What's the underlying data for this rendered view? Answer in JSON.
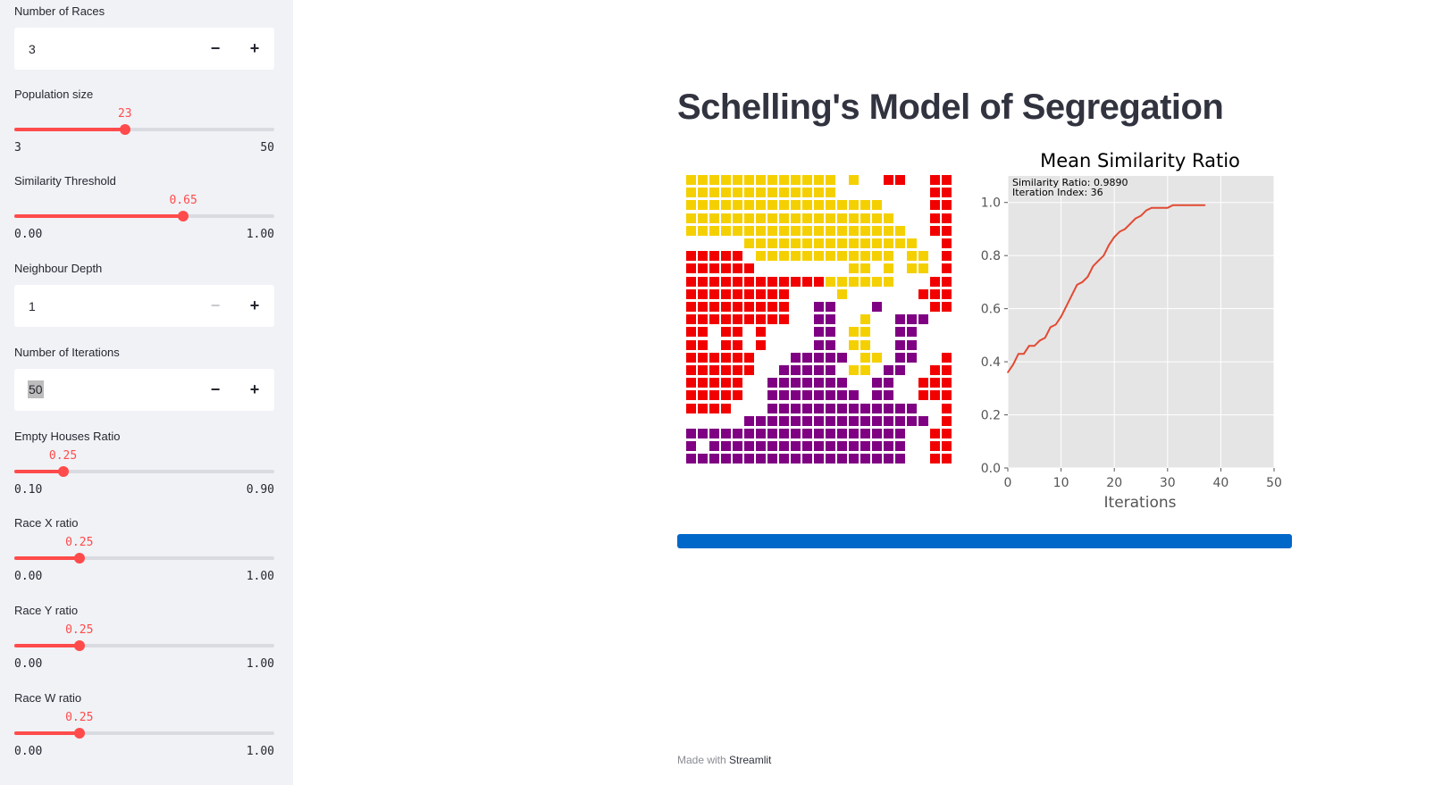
{
  "sidebar": {
    "races": {
      "label": "Number of Races",
      "value": "3",
      "minus": "−",
      "plus": "+"
    },
    "population": {
      "label": "Population size",
      "value": "23",
      "min": "3",
      "max": "50",
      "fraction": 0.4255
    },
    "threshold": {
      "label": "Similarity Threshold",
      "value": "0.65",
      "min": "0.00",
      "max": "1.00",
      "fraction": 0.65
    },
    "depth": {
      "label": "Neighbour Depth",
      "value": "1",
      "minus": "−",
      "plus": "+"
    },
    "iterations": {
      "label": "Number of Iterations",
      "value": "50",
      "minus": "−",
      "plus": "+"
    },
    "empty": {
      "label": "Empty Houses Ratio",
      "value": "0.25",
      "min": "0.10",
      "max": "0.90",
      "fraction": 0.1875
    },
    "race_x": {
      "label": "Race X ratio",
      "value": "0.25",
      "min": "0.00",
      "max": "1.00",
      "fraction": 0.25
    },
    "race_y": {
      "label": "Race Y ratio",
      "value": "0.25",
      "min": "0.00",
      "max": "1.00",
      "fraction": 0.25
    },
    "race_w": {
      "label": "Race W ratio",
      "value": "0.25",
      "min": "0.00",
      "max": "1.00",
      "fraction": 0.25
    }
  },
  "main": {
    "title": "Schelling's Model of Segregation",
    "progress": 1.0,
    "footer_prefix": "Made with",
    "footer_brand": "Streamlit"
  },
  "colors": {
    "accent": "#ff4b4b",
    "progress": "#0068c9",
    "race_1": "#f5d000",
    "race_2": "#f20000",
    "race_3": "#7f0082",
    "line": "#e24a33",
    "plot_bg": "#e5e5e5"
  },
  "grid": {
    "rows": [
      "YYYYYYYYYYYYY.Y..RR..RR",
      "YYYYYYYYYYYYY........RR",
      "YYYYYYYYYYYYYYYYY....RRR",
      "YYYYYYYYYYYYYYYYYY...RRR",
      "YYYYYYYYYYYYYYYYYYY..RRR",
      ".....YYYYYYYYYYYYYYY..RR",
      "RRRRR.YYYYYYYYYYYY.YY.RR",
      "RRRRRR........YY.Y.YY.RRRR",
      "RRRRRRRRRRRRYYYYYY...RRRRRR",
      "RRRRRRRRR....Y......RRRRR",
      "RRRRRRRRR..PP...P....RR",
      "RRRRRRRRR..PP..Y..PPP",
      "RR.RR.R....PP.YY..PP",
      "RR.RR.R....PP.YY..PP....RR",
      "RRRRRR...PPPPP.YY.PP..RRRR",
      "RRRRRR..PPPPP.YY.PP..RRRR",
      "RRRRR..PPPPPPP..PP..RRRR",
      "RRRRR..PPPPPPPP.PP..RRRR",
      "RRRR...PPPPPPPPPPPPP..RR",
      ".....PPPPPPPPPPPPPPPP.RR",
      "PPPPPPPPPPPPPPPPPPP..RR",
      "P.PPPPPPPPPPPPPPPPP..RR",
      "PPPPPPPPPPPPPPPPPPP..RR"
    ]
  },
  "chart_data": {
    "type": "line",
    "title": "Mean Similarity Ratio",
    "xlabel": "Iterations",
    "ylabel": "",
    "xlim": [
      0,
      50
    ],
    "ylim": [
      0,
      1.1
    ],
    "xticks": [
      "0",
      "10",
      "20",
      "30",
      "40",
      "50"
    ],
    "yticks": [
      "0.0",
      "0.2",
      "0.4",
      "0.6",
      "0.8",
      "1.0"
    ],
    "grid": true,
    "annotation": [
      "Similarity Ratio: 0.9890",
      "Iteration Index: 36"
    ],
    "series": [
      {
        "x": [
          0,
          1,
          2,
          3,
          4,
          5,
          6,
          7,
          8,
          9,
          10,
          11,
          12,
          13,
          14,
          15,
          16,
          17,
          18,
          19,
          20,
          21,
          22,
          23,
          24,
          25,
          26,
          27,
          28,
          29,
          30,
          31,
          32,
          33,
          34,
          35,
          36,
          37
        ],
        "y": [
          0.36,
          0.39,
          0.43,
          0.43,
          0.46,
          0.46,
          0.48,
          0.49,
          0.53,
          0.54,
          0.57,
          0.61,
          0.65,
          0.69,
          0.7,
          0.72,
          0.76,
          0.78,
          0.8,
          0.84,
          0.87,
          0.89,
          0.9,
          0.92,
          0.94,
          0.95,
          0.97,
          0.98,
          0.98,
          0.98,
          0.98,
          0.99,
          0.99,
          0.99,
          0.99,
          0.99,
          0.99,
          0.99
        ]
      }
    ]
  }
}
